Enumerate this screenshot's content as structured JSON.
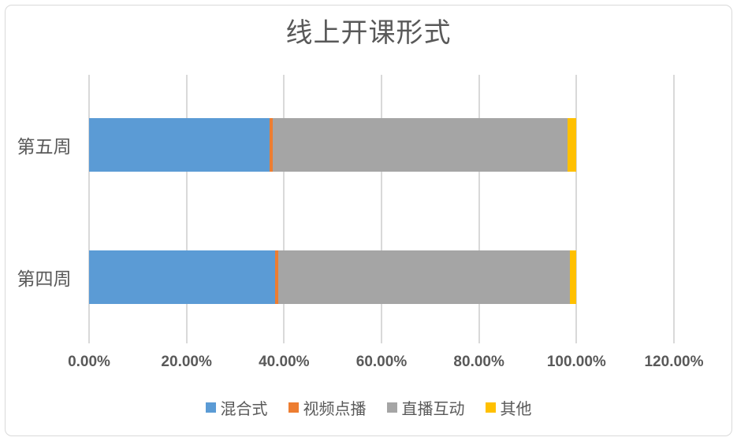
{
  "chart_data": {
    "type": "bar",
    "orientation": "horizontal",
    "stacked": true,
    "title": "线上开课形式",
    "categories": [
      "第五周",
      "第四周"
    ],
    "series": [
      {
        "name": "混合式",
        "color": "#5b9bd5",
        "values": [
          37.0,
          38.2
        ]
      },
      {
        "name": "视频点播",
        "color": "#ed7d31",
        "values": [
          0.7,
          0.6
        ]
      },
      {
        "name": "直播互动",
        "color": "#a5a5a5",
        "values": [
          60.4,
          59.8
        ]
      },
      {
        "name": "其他",
        "color": "#ffc000",
        "values": [
          1.9,
          1.4
        ]
      }
    ],
    "x_axis": {
      "min": 0,
      "max": 120,
      "unit": "percent",
      "tick_values": [
        0,
        20,
        40,
        60,
        80,
        100,
        120
      ],
      "tick_labels": [
        "0.00%",
        "20.00%",
        "40.00%",
        "60.00%",
        "80.00%",
        "100.00%",
        "120.00%"
      ]
    },
    "legend": {
      "position": "bottom",
      "labels": [
        "混合式",
        "视频点播",
        "直播互动",
        "其他"
      ]
    },
    "grid": true,
    "colors": {
      "gridline": "#d9d9d9",
      "frame_border": "#d9d9d9",
      "text": "#595959",
      "background": "#ffffff"
    }
  }
}
